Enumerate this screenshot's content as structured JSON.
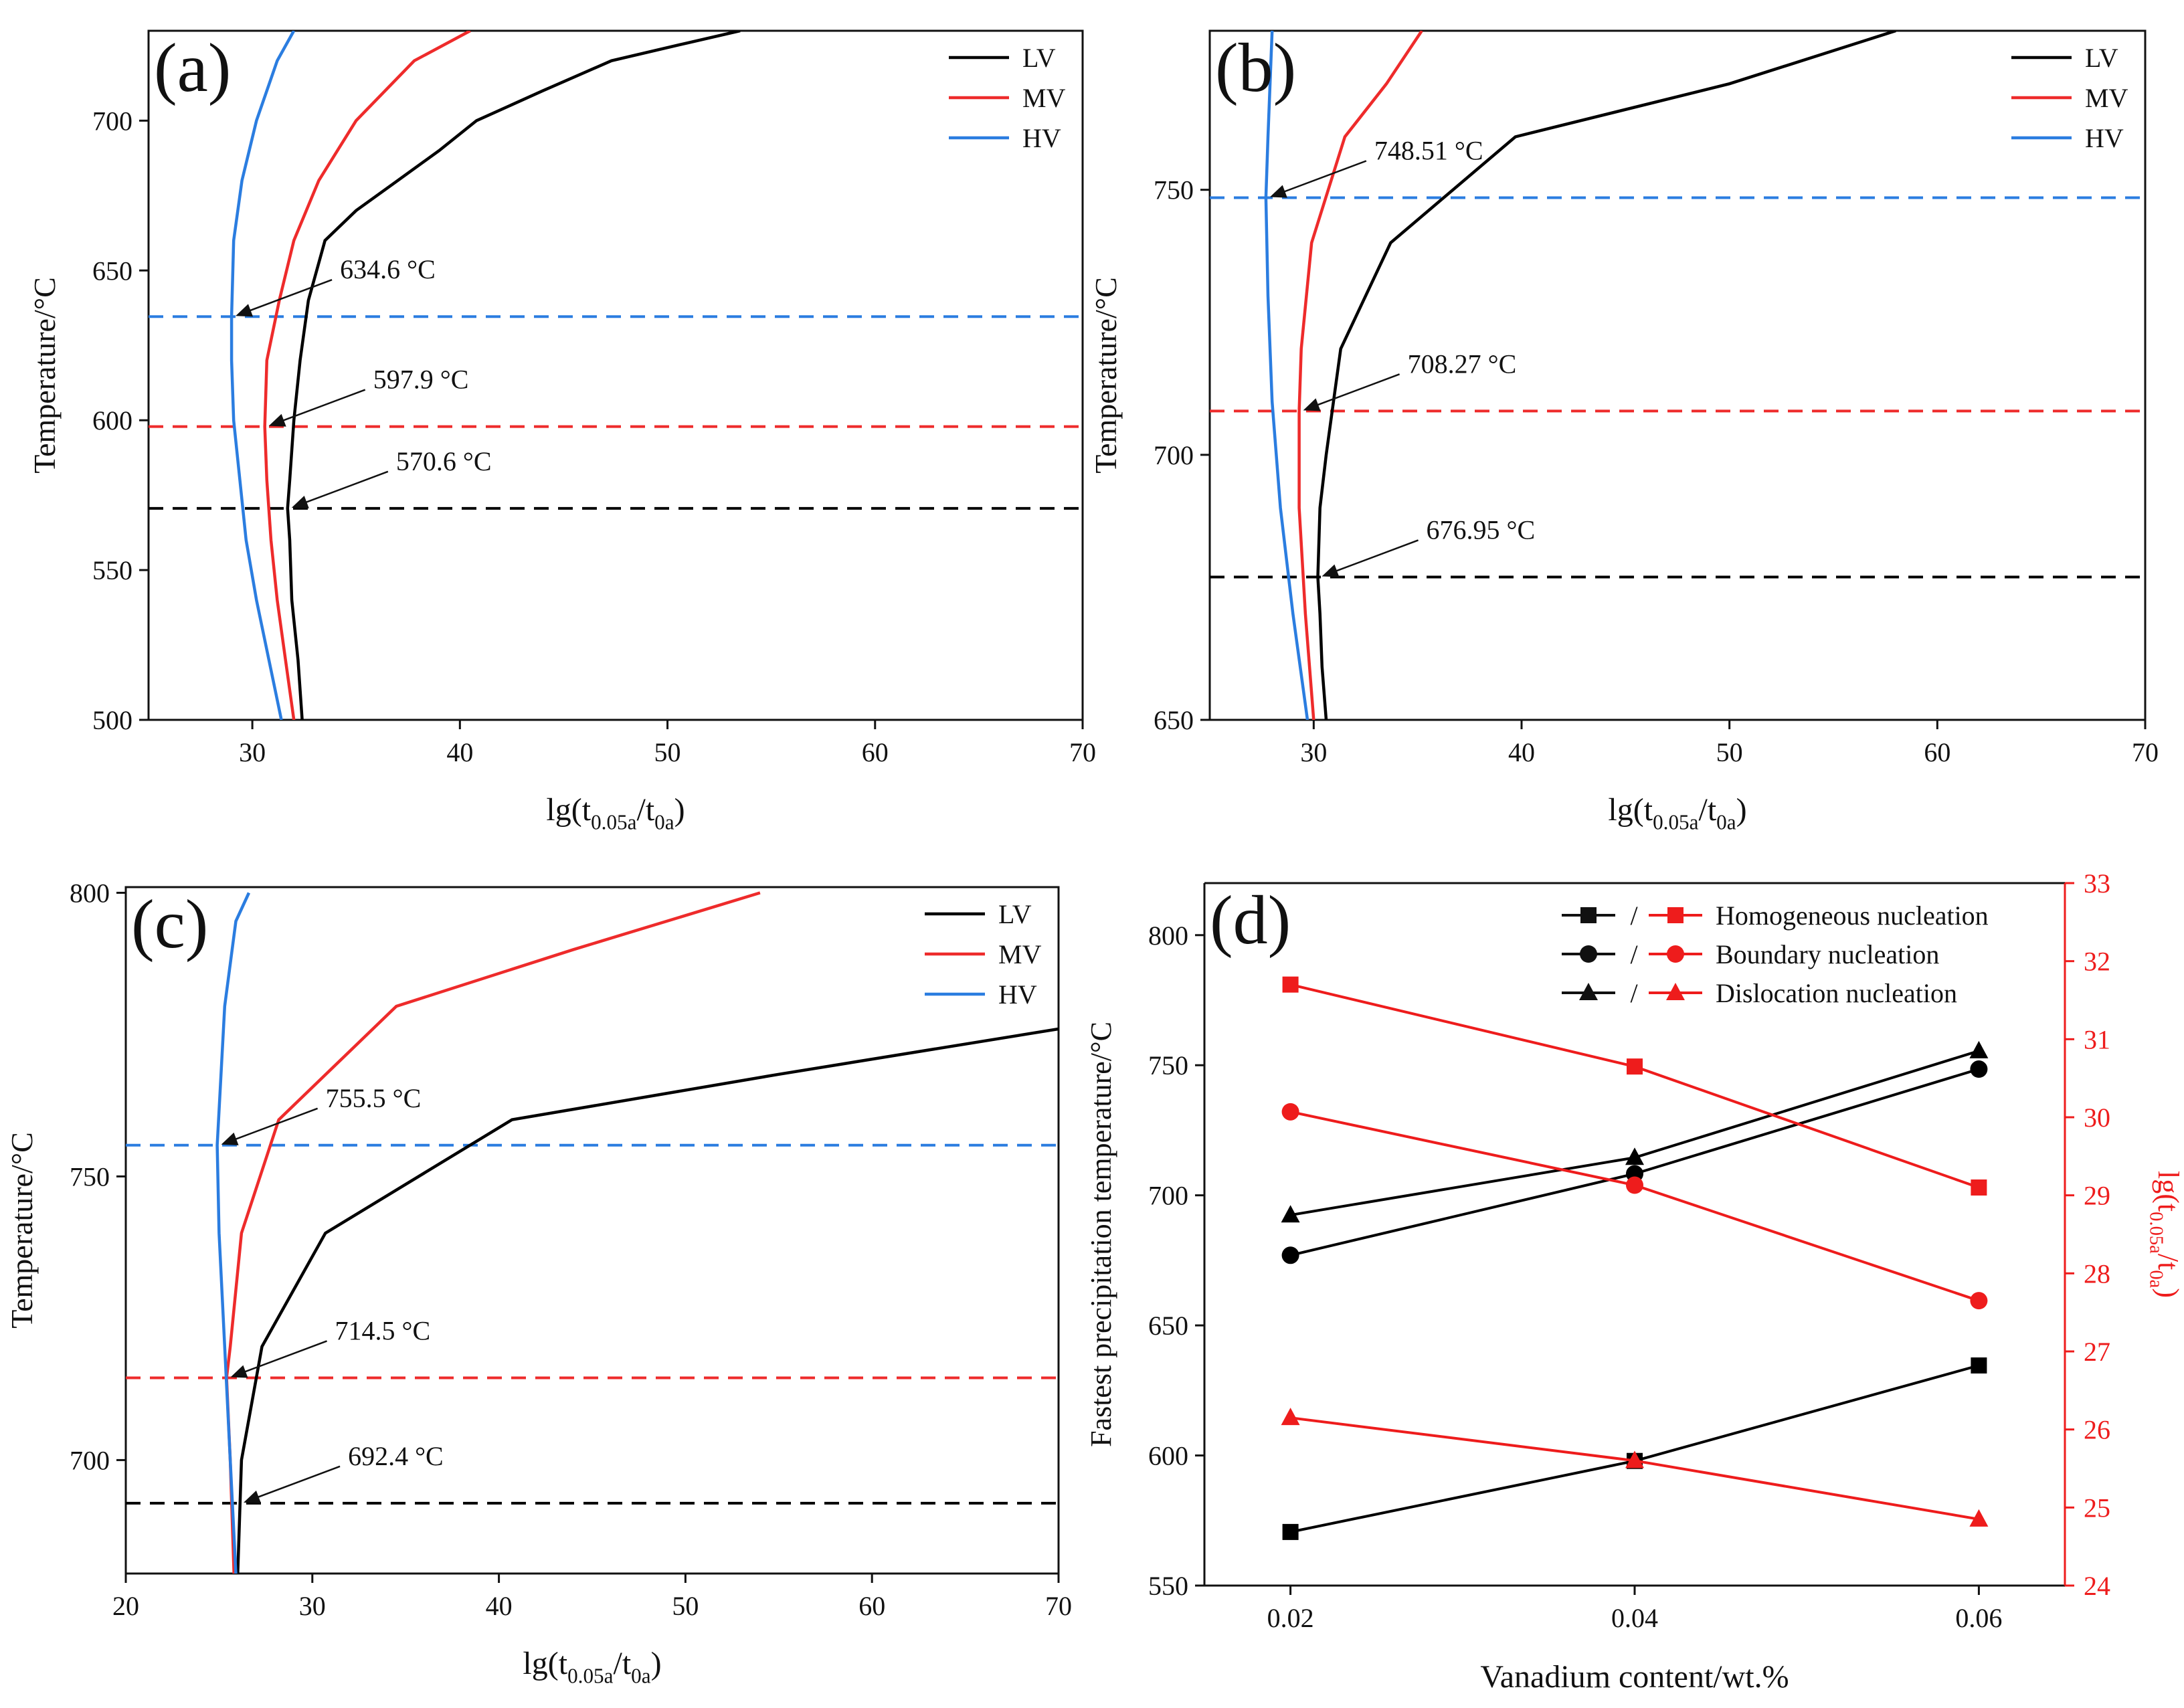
{
  "chart_data": [
    {
      "panel": "(a)",
      "type": "line",
      "xlabel": "lg(t0.05a/t0a)",
      "ylabel": "Temperature/°C",
      "xlim": [
        25,
        70
      ],
      "ylim": [
        500,
        730
      ],
      "xticks": [
        30,
        40,
        50,
        60,
        70
      ],
      "yticks": [
        500,
        550,
        600,
        650,
        700
      ],
      "grid": false,
      "legend": "top-right",
      "series": [
        {
          "name": "LV",
          "color": "#000000",
          "points": [
            [
              32.4,
              500
            ],
            [
              32.2,
              520
            ],
            [
              31.9,
              540
            ],
            [
              31.8,
              560
            ],
            [
              31.7,
              570.6
            ],
            [
              31.8,
              580
            ],
            [
              32.0,
              600
            ],
            [
              32.3,
              620
            ],
            [
              32.7,
              640
            ],
            [
              33.5,
              660
            ],
            [
              35.0,
              670
            ],
            [
              37.0,
              680
            ],
            [
              39.0,
              690
            ],
            [
              40.8,
              700
            ],
            [
              44.0,
              710
            ],
            [
              47.3,
              720
            ],
            [
              51.0,
              726
            ],
            [
              53.5,
              730
            ]
          ]
        },
        {
          "name": "MV",
          "color": "#ee2b2b",
          "points": [
            [
              32.0,
              500
            ],
            [
              31.6,
              520
            ],
            [
              31.2,
              540
            ],
            [
              30.9,
              560
            ],
            [
              30.7,
              580
            ],
            [
              30.6,
              597.9
            ],
            [
              30.7,
              620
            ],
            [
              31.3,
              640
            ],
            [
              32.0,
              660
            ],
            [
              33.2,
              680
            ],
            [
              35.0,
              700
            ],
            [
              37.8,
              720
            ],
            [
              40.5,
              730
            ]
          ]
        },
        {
          "name": "HV",
          "color": "#2b7de0",
          "points": [
            [
              31.4,
              500
            ],
            [
              30.8,
              520
            ],
            [
              30.2,
              540
            ],
            [
              29.7,
              560
            ],
            [
              29.4,
              580
            ],
            [
              29.1,
              600
            ],
            [
              29.0,
              620
            ],
            [
              29.0,
              634.6
            ],
            [
              29.1,
              660
            ],
            [
              29.5,
              680
            ],
            [
              30.2,
              700
            ],
            [
              31.2,
              720
            ],
            [
              32.0,
              730
            ]
          ]
        }
      ],
      "reference_lines": [
        {
          "y": 634.6,
          "color": "#2b7de0",
          "label": "634.6 °C"
        },
        {
          "y": 597.9,
          "color": "#ee2b2b",
          "label": "597.9 °C"
        },
        {
          "y": 570.6,
          "color": "#000000",
          "label": "570.6 °C"
        }
      ],
      "annotations": [
        {
          "text": "634.6 °C",
          "x": 29.0,
          "y": 634.6
        },
        {
          "text": "597.9 °C",
          "x": 30.6,
          "y": 597.9
        },
        {
          "text": "570.6 °C",
          "x": 31.7,
          "y": 570.6
        }
      ]
    },
    {
      "panel": "(b)",
      "type": "line",
      "xlabel": "lg(t0.05a/t0a)",
      "ylabel": "Temperature/°C",
      "xlim": [
        25,
        70
      ],
      "ylim": [
        650,
        780
      ],
      "xticks": [
        30,
        40,
        50,
        60,
        70
      ],
      "yticks": [
        650,
        700,
        750
      ],
      "grid": false,
      "legend": "top-right",
      "series": [
        {
          "name": "LV",
          "color": "#000000",
          "points": [
            [
              30.6,
              650
            ],
            [
              30.4,
              660
            ],
            [
              30.3,
              670
            ],
            [
              30.2,
              676.95
            ],
            [
              30.3,
              690
            ],
            [
              30.6,
              700
            ],
            [
              31.3,
              720
            ],
            [
              33.7,
              740
            ],
            [
              39.7,
              760
            ],
            [
              50.0,
              770
            ],
            [
              58.0,
              780
            ]
          ]
        },
        {
          "name": "MV",
          "color": "#ee2b2b",
          "points": [
            [
              30.0,
              650
            ],
            [
              29.6,
              670
            ],
            [
              29.3,
              690
            ],
            [
              29.3,
              708.27
            ],
            [
              29.4,
              720
            ],
            [
              29.9,
              740
            ],
            [
              31.5,
              760
            ],
            [
              33.5,
              770
            ],
            [
              35.2,
              780
            ]
          ]
        },
        {
          "name": "HV",
          "color": "#2b7de0",
          "points": [
            [
              29.7,
              650
            ],
            [
              29.0,
              670
            ],
            [
              28.4,
              690
            ],
            [
              28.0,
              710
            ],
            [
              27.8,
              730
            ],
            [
              27.7,
              748.51
            ],
            [
              27.8,
              760
            ],
            [
              28.0,
              780
            ]
          ]
        }
      ],
      "reference_lines": [
        {
          "y": 748.51,
          "color": "#2b7de0",
          "label": "748.51 °C"
        },
        {
          "y": 708.27,
          "color": "#ee2b2b",
          "label": "708.27 °C"
        },
        {
          "y": 676.95,
          "color": "#000000",
          "label": "676.95 °C"
        }
      ],
      "annotations": [
        {
          "text": "748.51 °C",
          "x": 27.7,
          "y": 748.51
        },
        {
          "text": "708.27 °C",
          "x": 29.3,
          "y": 708.27
        },
        {
          "text": "676.95 °C",
          "x": 30.2,
          "y": 676.95
        }
      ]
    },
    {
      "panel": "(c)",
      "type": "line",
      "xlabel": "lg(t0.05a/t0a)",
      "ylabel": "Temperature/°C",
      "xlim": [
        20,
        70
      ],
      "ylim": [
        680,
        801
      ],
      "xticks": [
        20,
        30,
        40,
        50,
        60,
        70
      ],
      "yticks": [
        700,
        750,
        800
      ],
      "grid": false,
      "legend": "top-right",
      "series": [
        {
          "name": "LV",
          "color": "#000000",
          "points": [
            [
              26.0,
              680
            ],
            [
              26.1,
              690
            ],
            [
              26.2,
              700
            ],
            [
              27.3,
              720
            ],
            [
              30.7,
              740
            ],
            [
              40.7,
              760
            ],
            [
              55.0,
              768
            ],
            [
              70.0,
              776
            ]
          ]
        },
        {
          "name": "MV",
          "color": "#ee2b2b",
          "points": [
            [
              25.8,
              680
            ],
            [
              25.6,
              700
            ],
            [
              25.4,
              714.5
            ],
            [
              25.6,
              720
            ],
            [
              26.2,
              740
            ],
            [
              28.2,
              760
            ],
            [
              34.5,
              780
            ],
            [
              44.0,
              790
            ],
            [
              54.0,
              800
            ]
          ]
        },
        {
          "name": "HV",
          "color": "#2b7de0",
          "points": [
            [
              25.9,
              680
            ],
            [
              25.6,
              700
            ],
            [
              25.3,
              720
            ],
            [
              25.0,
              740
            ],
            [
              24.9,
              755.5
            ],
            [
              25.3,
              780
            ],
            [
              25.9,
              795
            ],
            [
              26.6,
              800
            ]
          ]
        }
      ],
      "reference_lines": [
        {
          "y": 755.5,
          "color": "#2b7de0",
          "label": "755.5 °C"
        },
        {
          "y": 714.5,
          "color": "#ee2b2b",
          "label": "714.5 °C"
        },
        {
          "y": 692.4,
          "color": "#000000",
          "label": "692.4 °C"
        }
      ],
      "annotations": [
        {
          "text": "755.5 °C",
          "x": 24.9,
          "y": 755.5
        },
        {
          "text": "714.5 °C",
          "x": 25.4,
          "y": 714.5
        },
        {
          "text": "692.4 °C",
          "x": 26.1,
          "y": 692.4
        }
      ]
    },
    {
      "panel": "(d)",
      "type": "line",
      "xlabel": "Vanadium content/wt.%",
      "ylabel": "Fastest precipitation temperature/°C",
      "ylabel_right": "lg(t0.05a/t0a)",
      "xlim": [
        0.015,
        0.065
      ],
      "ylim": [
        550,
        820
      ],
      "ylim_right": [
        24,
        33
      ],
      "xticks": [
        0.02,
        0.04,
        0.06
      ],
      "yticks": [
        550,
        600,
        650,
        700,
        750,
        800
      ],
      "yticks_right": [
        24,
        25,
        26,
        27,
        28,
        29,
        30,
        31,
        32,
        33
      ],
      "grid": false,
      "legend": "top-right",
      "categories": [
        0.02,
        0.04,
        0.06
      ],
      "series": [
        {
          "name": "Homogeneous nucleation",
          "axis": "left",
          "color": "#000000",
          "marker": "square",
          "values": [
            570.6,
            597.9,
            634.6
          ]
        },
        {
          "name": "Boundary nucleation",
          "axis": "left",
          "color": "#000000",
          "marker": "circle",
          "values": [
            676.95,
            708.27,
            748.51
          ]
        },
        {
          "name": "Dislocation nucleation",
          "axis": "left",
          "color": "#000000",
          "marker": "triangle",
          "values": [
            692.4,
            714.5,
            755.5
          ]
        },
        {
          "name": "Homogeneous nucleation",
          "axis": "right",
          "color": "#ee1c1c",
          "marker": "square",
          "values": [
            31.7,
            30.65,
            29.1
          ]
        },
        {
          "name": "Boundary nucleation",
          "axis": "right",
          "color": "#ee1c1c",
          "marker": "circle",
          "values": [
            30.07,
            29.13,
            27.65
          ]
        },
        {
          "name": "Dislocation nucleation",
          "axis": "right",
          "color": "#ee1c1c",
          "marker": "triangle",
          "values": [
            26.15,
            25.6,
            24.85
          ]
        }
      ],
      "legend_entries": [
        {
          "label": "Homogeneous nucleation",
          "marker": "square",
          "separator": "/"
        },
        {
          "label": "Boundary nucleation",
          "marker": "circle",
          "separator": "/"
        },
        {
          "label": "Dislocation nucleation",
          "marker": "triangle",
          "separator": "/"
        }
      ]
    }
  ]
}
